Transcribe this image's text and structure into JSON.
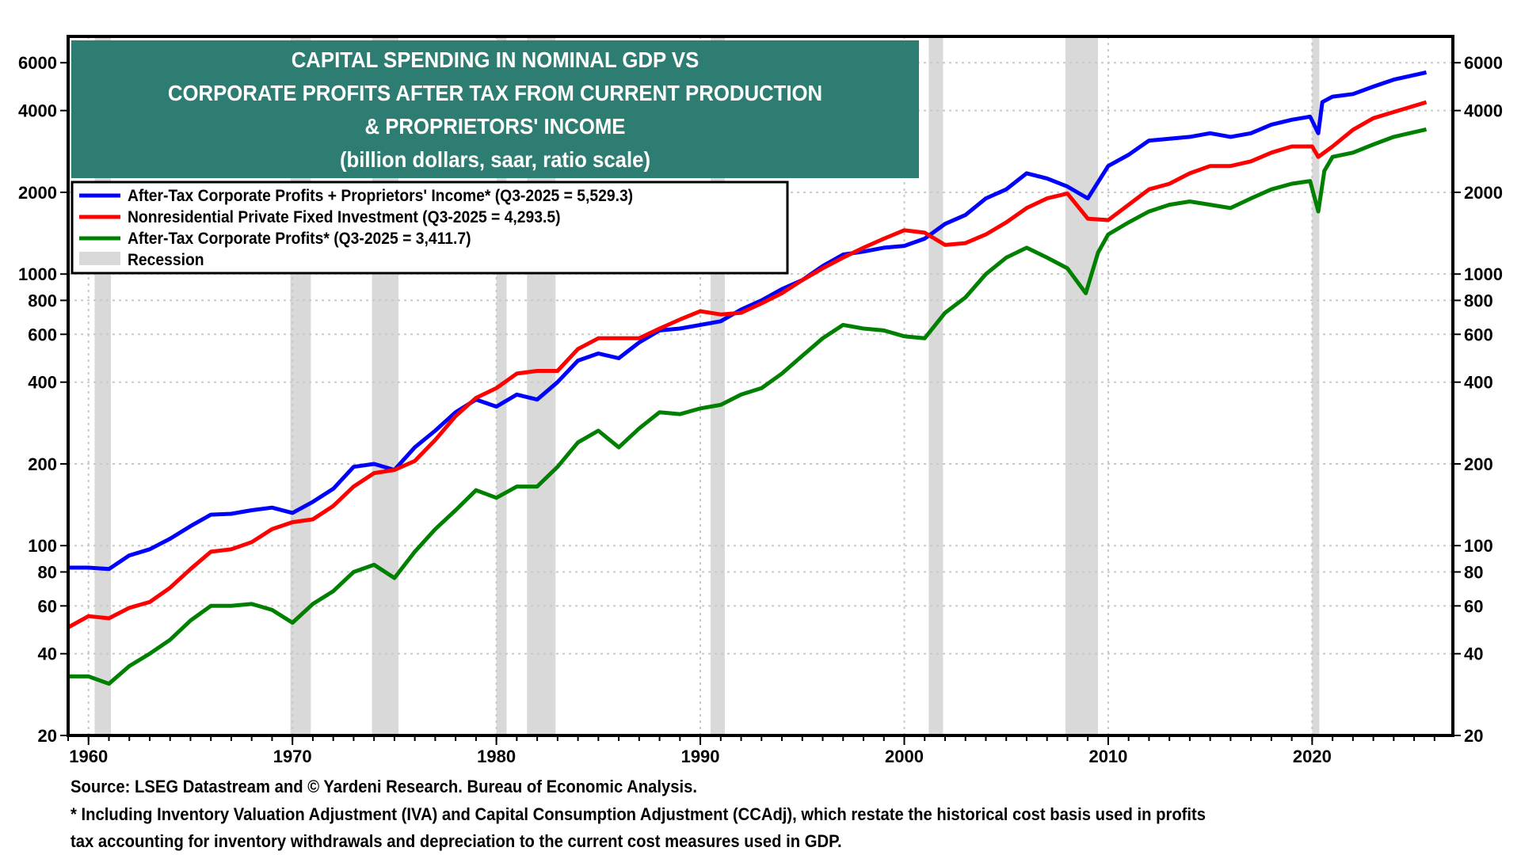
{
  "chart_data": {
    "type": "line",
    "title": [
      "CAPITAL SPENDING IN NOMINAL GDP VS",
      "CORPORATE PROFITS AFTER TAX FROM CURRENT PRODUCTION",
      "& PROPRIETORS' INCOME",
      "(billion dollars, saar, ratio scale)"
    ],
    "xlabel": "",
    "ylabel": "",
    "y_scale": "log",
    "ylim": [
      20,
      7500
    ],
    "xlim": [
      1959.0,
      2026.9
    ],
    "x_ticks": [
      1960,
      1970,
      1980,
      1990,
      2000,
      2010,
      2020
    ],
    "y_ticks": [
      20,
      40,
      60,
      80,
      100,
      200,
      400,
      600,
      800,
      1000,
      2000,
      4000,
      6000
    ],
    "grid": true,
    "legend_position": "top-left",
    "legend": [
      {
        "label": "After-Tax Corporate Profits + Proprietors' Income* (Q3-2025 = 5,529.3)",
        "color": "#0000FF"
      },
      {
        "label": "Nonresidential Private Fixed Investment (Q3-2025 = 4,293.5)",
        "color": "#FF0000"
      },
      {
        "label": "After-Tax Corporate Profits* (Q3-2025 = 3,411.7)",
        "color": "#008000"
      },
      {
        "label": "Recession",
        "color": "#D9D9D9"
      }
    ],
    "recessions": [
      [
        1960.3,
        1961.1
      ],
      [
        1969.9,
        1970.9
      ],
      [
        1973.9,
        1975.2
      ],
      [
        1980.0,
        1980.5
      ],
      [
        1981.5,
        1982.9
      ],
      [
        1990.5,
        1991.2
      ],
      [
        2001.2,
        2001.9
      ],
      [
        2007.9,
        2009.5
      ],
      [
        2020.0,
        2020.35
      ]
    ],
    "series": [
      {
        "name": "After-Tax Corporate Profits + Proprietors' Income*",
        "color": "#0000FF",
        "x": [
          1959.0,
          1960,
          1961,
          1962,
          1963,
          1964,
          1965,
          1966,
          1967,
          1968,
          1969,
          1970,
          1971,
          1972,
          1973,
          1974,
          1975,
          1976,
          1977,
          1978,
          1979,
          1980,
          1981,
          1982,
          1983,
          1984,
          1985,
          1986,
          1987,
          1988,
          1989,
          1990,
          1991,
          1992,
          1993,
          1994,
          1995,
          1996,
          1997,
          1998,
          1999,
          2000,
          2001,
          2002,
          2003,
          2004,
          2005,
          2006,
          2007,
          2008,
          2009,
          2010,
          2011,
          2012,
          2013,
          2014,
          2015,
          2016,
          2017,
          2018,
          2019,
          2019.9,
          2020.3,
          2020.5,
          2021,
          2022,
          2023,
          2024,
          2025.6
        ],
        "values": [
          83,
          83,
          82,
          92,
          97,
          106,
          118,
          130,
          131,
          135,
          138,
          132,
          145,
          162,
          195,
          200,
          190,
          230,
          265,
          310,
          345,
          325,
          360,
          345,
          400,
          480,
          510,
          490,
          560,
          620,
          630,
          650,
          670,
          740,
          800,
          880,
          950,
          1070,
          1180,
          1210,
          1250,
          1270,
          1350,
          1530,
          1650,
          1900,
          2050,
          2350,
          2250,
          2100,
          1900,
          2500,
          2750,
          3100,
          3150,
          3200,
          3300,
          3200,
          3300,
          3550,
          3700,
          3800,
          3300,
          4300,
          4500,
          4600,
          4900,
          5200,
          5529.3
        ]
      },
      {
        "name": "Nonresidential Private Fixed Investment",
        "color": "#FF0000",
        "x": [
          1959.0,
          1960,
          1961,
          1962,
          1963,
          1964,
          1965,
          1966,
          1967,
          1968,
          1969,
          1970,
          1971,
          1972,
          1973,
          1974,
          1975,
          1976,
          1977,
          1978,
          1979,
          1980,
          1981,
          1982,
          1983,
          1984,
          1985,
          1986,
          1987,
          1988,
          1989,
          1990,
          1991,
          1992,
          1993,
          1994,
          1995,
          1996,
          1997,
          1998,
          1999,
          2000,
          2001,
          2002,
          2003,
          2004,
          2005,
          2006,
          2007,
          2008,
          2009,
          2010,
          2011,
          2012,
          2013,
          2014,
          2015,
          2016,
          2017,
          2018,
          2019,
          2020.0,
          2020.3,
          2021,
          2022,
          2023,
          2024,
          2025.6
        ],
        "values": [
          50,
          55,
          54,
          59,
          62,
          70,
          82,
          95,
          97,
          103,
          115,
          122,
          125,
          140,
          165,
          185,
          190,
          205,
          245,
          300,
          350,
          380,
          430,
          440,
          440,
          530,
          580,
          580,
          580,
          630,
          680,
          730,
          710,
          720,
          780,
          850,
          950,
          1050,
          1150,
          1250,
          1350,
          1450,
          1420,
          1280,
          1300,
          1400,
          1550,
          1750,
          1900,
          1980,
          1600,
          1580,
          1800,
          2050,
          2150,
          2350,
          2500,
          2500,
          2600,
          2800,
          2950,
          2950,
          2700,
          2950,
          3400,
          3750,
          3950,
          4293.5
        ]
      },
      {
        "name": "After-Tax Corporate Profits*",
        "color": "#008000",
        "x": [
          1959.0,
          1960,
          1961,
          1962,
          1963,
          1964,
          1965,
          1966,
          1967,
          1968,
          1969,
          1970,
          1971,
          1972,
          1973,
          1974,
          1975,
          1976,
          1977,
          1978,
          1979,
          1980,
          1981,
          1982,
          1983,
          1984,
          1985,
          1986,
          1987,
          1988,
          1989,
          1990,
          1991,
          1992,
          1993,
          1994,
          1995,
          1996,
          1997,
          1998,
          1999,
          2000,
          2001,
          2002,
          2003,
          2004,
          2005,
          2006,
          2007,
          2008,
          2008.9,
          2009.5,
          2010,
          2011,
          2012,
          2013,
          2014,
          2015,
          2016,
          2017,
          2018,
          2019,
          2019.9,
          2020.3,
          2020.6,
          2021,
          2022,
          2023,
          2024,
          2025.6
        ],
        "values": [
          33,
          33,
          31,
          36,
          40,
          45,
          53,
          60,
          60,
          61,
          58,
          52,
          61,
          68,
          80,
          85,
          76,
          95,
          115,
          135,
          160,
          150,
          165,
          165,
          195,
          240,
          265,
          230,
          270,
          310,
          305,
          320,
          330,
          360,
          380,
          430,
          500,
          580,
          650,
          630,
          620,
          590,
          580,
          720,
          820,
          1000,
          1150,
          1250,
          1150,
          1050,
          850,
          1200,
          1400,
          1550,
          1700,
          1800,
          1850,
          1800,
          1750,
          1900,
          2050,
          2150,
          2200,
          1700,
          2400,
          2700,
          2800,
          3000,
          3200,
          3411.7
        ]
      }
    ]
  },
  "footnotes": {
    "source": "Source: LSEG Datastream and © Yardeni Research. Bureau of Economic Analysis.",
    "note_line1": "* Including Inventory Valuation Adjustment (IVA) and Capital Consumption Adjustment (CCAdj), which restate the historical cost basis used in profits",
    "note_line2": "tax accounting for inventory withdrawals and depreciation to the current cost measures used in GDP."
  }
}
